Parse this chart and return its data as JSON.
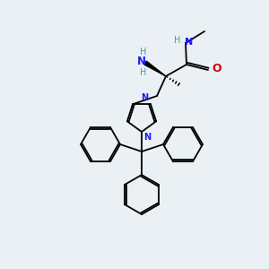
{
  "bg": "#eaf0f4",
  "bc": "#000000",
  "nc": "#1a1aff",
  "oc": "#cc0000",
  "nhc": "#4d9999",
  "figsize": [
    3.0,
    3.0
  ],
  "dpi": 100,
  "xlim": [
    0,
    300
  ],
  "ylim": [
    0,
    300
  ]
}
